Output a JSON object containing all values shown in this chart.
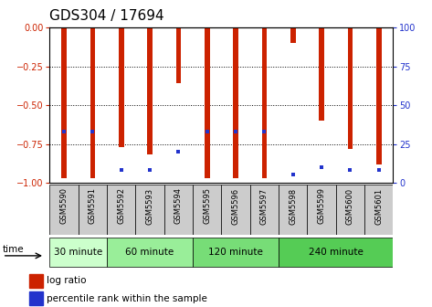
{
  "title": "GDS304 / 17694",
  "samples": [
    "GSM5590",
    "GSM5591",
    "GSM5592",
    "GSM5593",
    "GSM5594",
    "GSM5595",
    "GSM5596",
    "GSM5597",
    "GSM5598",
    "GSM5599",
    "GSM5600",
    "GSM5601"
  ],
  "log_ratio": [
    -0.97,
    -0.97,
    -0.77,
    -0.82,
    -0.36,
    -0.97,
    -0.97,
    -0.97,
    -0.1,
    -0.6,
    -0.78,
    -0.88
  ],
  "percentile_rank_pct": [
    33,
    33,
    8,
    8,
    20,
    33,
    33,
    33,
    5,
    10,
    8,
    8
  ],
  "groups": [
    {
      "label": "30 minute",
      "start": 0,
      "end": 1,
      "color": "#ccffcc"
    },
    {
      "label": "60 minute",
      "start": 2,
      "end": 4,
      "color": "#99ee99"
    },
    {
      "label": "120 minute",
      "start": 5,
      "end": 7,
      "color": "#77dd77"
    },
    {
      "label": "240 minute",
      "start": 8,
      "end": 11,
      "color": "#55cc55"
    }
  ],
  "bar_color": "#cc2200",
  "dot_color": "#2233cc",
  "ylim_left": [
    -1.0,
    0.0
  ],
  "ylim_right": [
    0,
    100
  ],
  "yticks_left": [
    0,
    -0.25,
    -0.5,
    -0.75,
    -1.0
  ],
  "yticks_right": [
    0,
    25,
    50,
    75,
    100
  ],
  "ylabel_left_color": "#cc2200",
  "ylabel_right_color": "#2233cc",
  "bg_plot": "#ffffff",
  "bg_label": "#cccccc",
  "title_fontsize": 11,
  "tick_fontsize": 7,
  "bar_width": 0.18,
  "time_label": "time"
}
